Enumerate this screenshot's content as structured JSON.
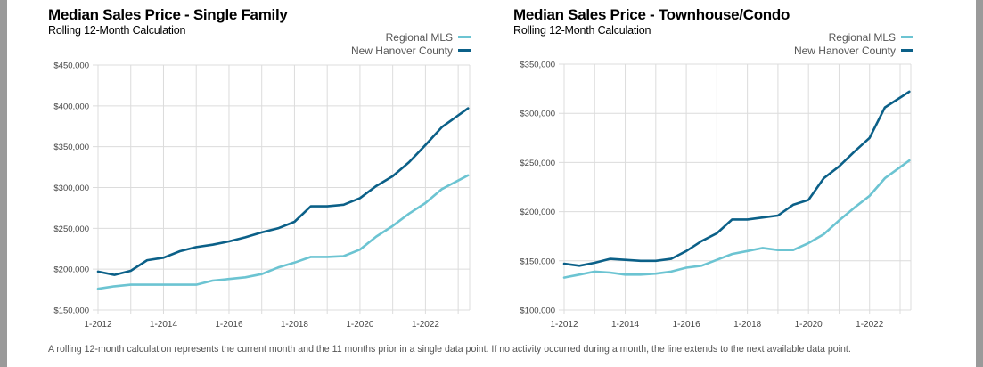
{
  "footnote": "A rolling 12-month calculation represents the current month and the 11 months prior in a single data point. If no activity occurred during a month, the line extends to the next available data point.",
  "colors": {
    "regional": "#6cc4d2",
    "county": "#0b6088",
    "grid": "#dcdcdc",
    "axis_text": "#444444"
  },
  "chart_data": [
    {
      "type": "line",
      "title": "Median Sales Price - Single Family",
      "subtitle": "Rolling 12-Month Calculation",
      "xlabel": "",
      "ylabel": "",
      "legend": [
        "Regional MLS",
        "New Hanover County"
      ],
      "legend_position": "top-right",
      "grid": true,
      "xlim": [
        2012.0,
        2023.35
      ],
      "ylim": [
        150000,
        450000
      ],
      "x_ticks": [
        2012,
        2014,
        2016,
        2018,
        2020,
        2022
      ],
      "x_tick_labels": [
        "1-2012",
        "1-2014",
        "1-2016",
        "1-2018",
        "1-2020",
        "1-2022"
      ],
      "y_ticks": [
        150000,
        200000,
        250000,
        300000,
        350000,
        400000,
        450000
      ],
      "y_tick_labels": [
        "$150,000",
        "$200,000",
        "$250,000",
        "$300,000",
        "$350,000",
        "$400,000",
        "$450,000"
      ],
      "x": [
        2012.0,
        2012.5,
        2013.0,
        2013.5,
        2014.0,
        2014.5,
        2015.0,
        2015.5,
        2016.0,
        2016.5,
        2017.0,
        2017.5,
        2018.0,
        2018.5,
        2019.0,
        2019.5,
        2020.0,
        2020.5,
        2021.0,
        2021.5,
        2022.0,
        2022.5,
        2023.3
      ],
      "series": [
        {
          "name": "Regional MLS",
          "key": "regional",
          "values": [
            176000,
            179000,
            181000,
            181000,
            181000,
            181000,
            181000,
            186000,
            188000,
            190000,
            194000,
            202000,
            208000,
            215000,
            215000,
            216000,
            224000,
            240000,
            253000,
            268000,
            281000,
            298000,
            315000
          ]
        },
        {
          "name": "New Hanover County",
          "key": "county",
          "values": [
            197000,
            193000,
            198000,
            211000,
            214000,
            222000,
            227000,
            230000,
            234000,
            239000,
            245000,
            250000,
            258000,
            277000,
            277000,
            279000,
            287000,
            302000,
            314000,
            331000,
            352000,
            374000,
            397000
          ]
        }
      ]
    },
    {
      "type": "line",
      "title": "Median Sales Price - Townhouse/Condo",
      "subtitle": "Rolling 12-Month Calculation",
      "xlabel": "",
      "ylabel": "",
      "legend": [
        "Regional MLS",
        "New Hanover County"
      ],
      "legend_position": "top-right",
      "grid": true,
      "xlim": [
        2012.0,
        2023.35
      ],
      "ylim": [
        100000,
        350000
      ],
      "x_ticks": [
        2012,
        2014,
        2016,
        2018,
        2020,
        2022
      ],
      "x_tick_labels": [
        "1-2012",
        "1-2014",
        "1-2016",
        "1-2018",
        "1-2020",
        "1-2022"
      ],
      "y_ticks": [
        100000,
        150000,
        200000,
        250000,
        300000,
        350000
      ],
      "y_tick_labels": [
        "$100,000",
        "$150,000",
        "$200,000",
        "$250,000",
        "$300,000",
        "$350,000"
      ],
      "x": [
        2012.0,
        2012.5,
        2013.0,
        2013.5,
        2014.0,
        2014.5,
        2015.0,
        2015.5,
        2016.0,
        2016.5,
        2017.0,
        2017.5,
        2018.0,
        2018.5,
        2019.0,
        2019.5,
        2020.0,
        2020.5,
        2021.0,
        2021.5,
        2022.0,
        2022.5,
        2023.3
      ],
      "series": [
        {
          "name": "Regional MLS",
          "key": "regional",
          "values": [
            133000,
            136000,
            139000,
            138000,
            136000,
            136000,
            137000,
            139000,
            143000,
            145000,
            151000,
            157000,
            160000,
            163000,
            161000,
            161000,
            168000,
            177000,
            191000,
            204000,
            216000,
            234000,
            252000
          ]
        },
        {
          "name": "New Hanover County",
          "key": "county",
          "values": [
            147000,
            145000,
            148000,
            152000,
            151000,
            150000,
            150000,
            152000,
            160000,
            170000,
            178000,
            192000,
            192000,
            194000,
            196000,
            207000,
            212000,
            234000,
            246000,
            261000,
            275000,
            306000,
            322000
          ]
        }
      ]
    }
  ]
}
